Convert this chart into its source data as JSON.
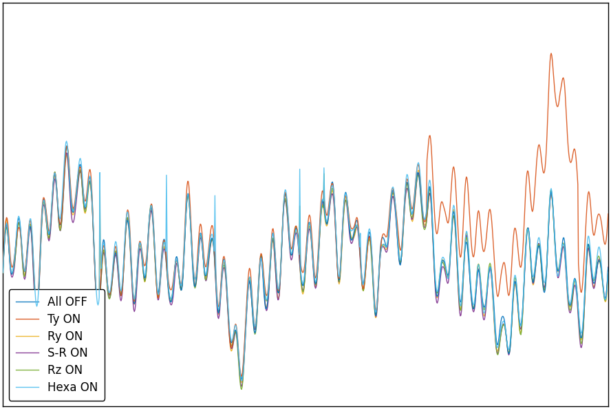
{
  "title": "",
  "xlabel": "",
  "ylabel": "",
  "xlim": [
    0,
    1000
  ],
  "ylim_relative": true,
  "background_color": "#ffffff",
  "grid_color": "#cccccc",
  "series": [
    {
      "label": "All OFF",
      "color": "#0072BD",
      "zorder": 4
    },
    {
      "label": "Ty ON",
      "color": "#D95319",
      "zorder": 5
    },
    {
      "label": "Ry ON",
      "color": "#EDB120",
      "zorder": 3
    },
    {
      "label": "S-R ON",
      "color": "#7E2F8E",
      "zorder": 3
    },
    {
      "label": "Rz ON",
      "color": "#77AC30",
      "zorder": 3
    },
    {
      "label": "Hexa ON",
      "color": "#4DBEEE",
      "zorder": 6
    }
  ],
  "legend_loc": "lower left",
  "figsize": [
    8.88,
    5.94
  ],
  "dpi": 100,
  "linewidth": 1.0
}
